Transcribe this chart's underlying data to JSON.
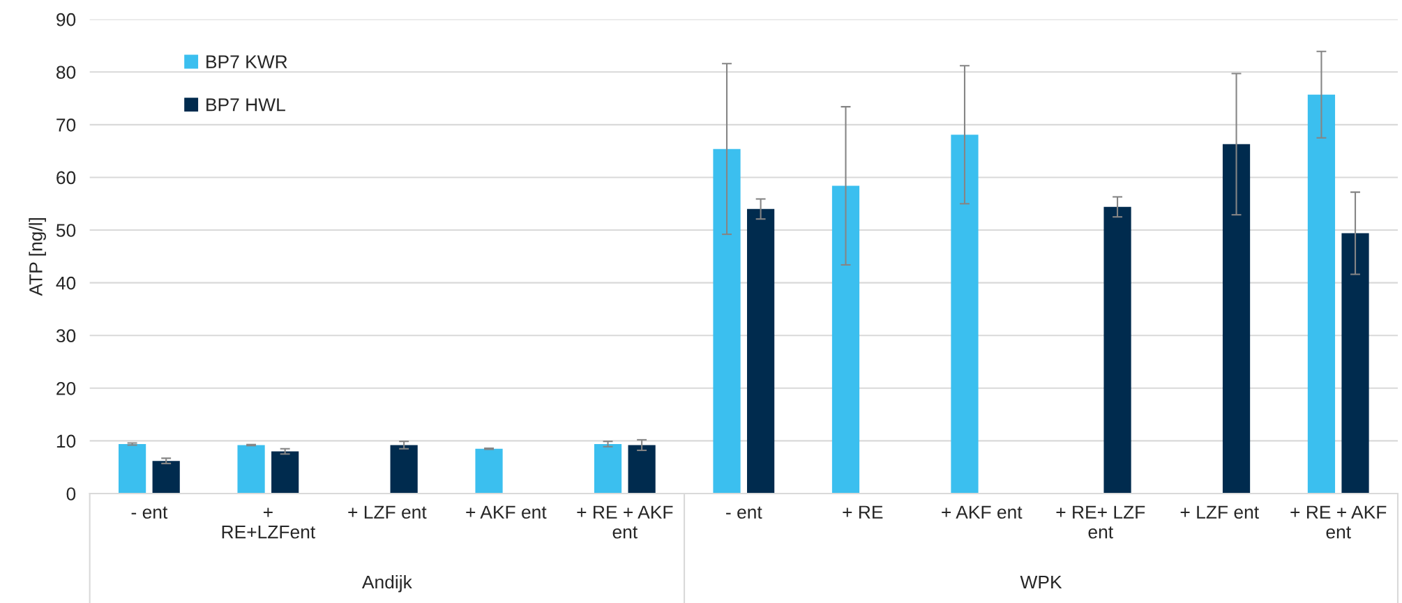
{
  "chart_data": {
    "type": "bar",
    "ylabel": "ATP [ng/l]",
    "categories": [
      "- ent",
      "+ RE+LZFent",
      "+ LZF ent",
      "+ AKF ent",
      "+ RE + AKF ent",
      "- ent",
      "+ RE",
      "+ AKF ent",
      "+ RE+ LZF ent",
      "+ LZF ent",
      "+ RE + AKF ent"
    ],
    "series": [
      {
        "name": "BP7 KWR",
        "color": "#3bbfef",
        "values": [
          9.4,
          9.2,
          null,
          8.5,
          9.4,
          65.4,
          58.4,
          68.1,
          null,
          null,
          75.7
        ],
        "errors": [
          0.2,
          0.1,
          null,
          0.1,
          0.5,
          16.2,
          15.0,
          13.1,
          null,
          null,
          8.2
        ]
      },
      {
        "name": "BP7 HWL",
        "color": "#002b4e",
        "values": [
          6.2,
          8.0,
          9.2,
          null,
          9.2,
          54.0,
          null,
          null,
          54.4,
          66.3,
          49.4
        ],
        "errors": [
          0.5,
          0.5,
          0.7,
          null,
          1.0,
          1.9,
          null,
          null,
          1.9,
          13.4,
          7.8
        ]
      }
    ],
    "annotations": [
      "Andijk",
      "WPK"
    ],
    "ylim": [
      0,
      90
    ],
    "yticks": [
      0,
      10,
      20,
      30,
      40,
      50,
      60,
      70,
      80,
      90
    ],
    "grid": "y",
    "legend": "top left"
  }
}
